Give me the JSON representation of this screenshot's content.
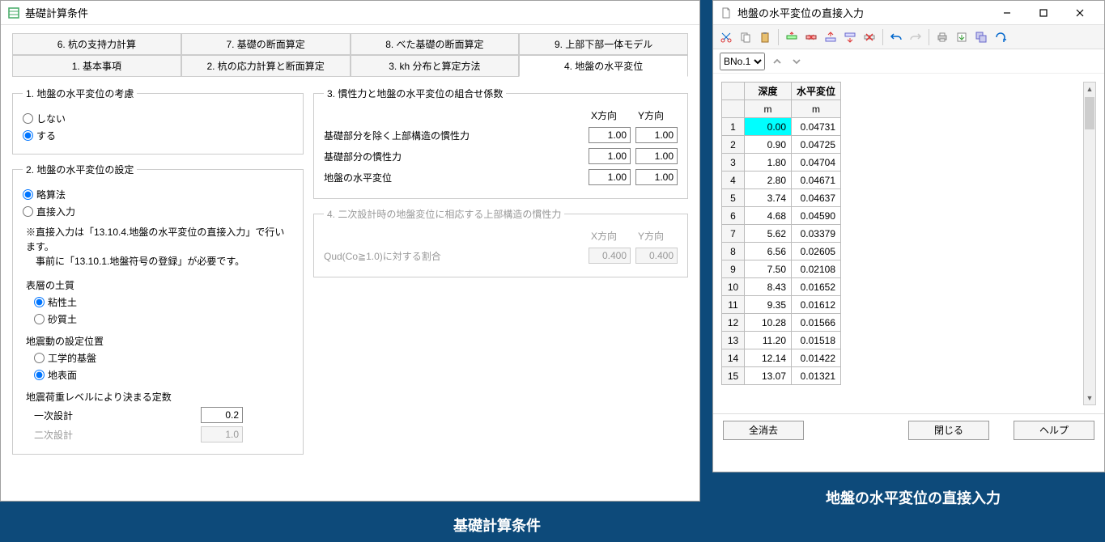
{
  "win1": {
    "title": "基礎計算条件",
    "tabs_top": [
      "6. 杭の支持力計算",
      "7. 基礎の断面算定",
      "8. べた基礎の断面算定",
      "9. 上部下部一体モデル"
    ],
    "tabs_bottom": [
      "1. 基本事項",
      "2. 杭の応力計算と断面算定",
      "3. kh 分布と算定方法",
      "4. 地盤の水平変位"
    ],
    "active_tab": "4. 地盤の水平変位",
    "group1": {
      "legend": "1. 地盤の水平変位の考慮",
      "opt_no": "しない",
      "opt_yes": "する"
    },
    "group2": {
      "legend": "2. 地盤の水平変位の設定",
      "opt_a": "略算法",
      "opt_b": "直接入力",
      "note": "※直接入力は「13.10.4.地盤の水平変位の直接入力」で行います。\n　事前に「13.10.1.地盤符号の登録」が必要です。",
      "surface_label": "表層の土質",
      "surface_opt1": "粘性土",
      "surface_opt2": "砂質土",
      "motion_label": "地震動の設定位置",
      "motion_opt1": "工学的基盤",
      "motion_opt2": "地表面",
      "const_label": "地震荷重レベルにより決まる定数",
      "const1_label": "一次設計",
      "const1_value": "0.2",
      "const2_label": "二次設計",
      "const2_value": "1.0"
    },
    "group3": {
      "legend": "3. 慣性力と地盤の水平変位の組合せ係数",
      "x_label": "X方向",
      "y_label": "Y方向",
      "row1": "基礎部分を除く上部構造の慣性力",
      "row2": "基礎部分の慣性力",
      "row3": "地盤の水平変位",
      "v1x": "1.00",
      "v1y": "1.00",
      "v2x": "1.00",
      "v2y": "1.00",
      "v3x": "1.00",
      "v3y": "1.00"
    },
    "group4": {
      "legend": "4. 二次設計時の地盤変位に相応する上部構造の慣性力",
      "x_label": "X方向",
      "y_label": "Y方向",
      "row1": "Qud(Co≧1.0)に対する割合",
      "v1x": "0.400",
      "v1y": "0.400"
    },
    "caption": "基礎計算条件"
  },
  "win2": {
    "title": "地盤の水平変位の直接入力",
    "selector": "BNo.1",
    "table": {
      "col1": "深度",
      "col2": "水平変位",
      "unit1": "m",
      "unit2": "m",
      "rows": [
        {
          "n": "1",
          "d": "0.00",
          "v": "0.04731",
          "hl": true
        },
        {
          "n": "2",
          "d": "0.90",
          "v": "0.04725"
        },
        {
          "n": "3",
          "d": "1.80",
          "v": "0.04704"
        },
        {
          "n": "4",
          "d": "2.80",
          "v": "0.04671"
        },
        {
          "n": "5",
          "d": "3.74",
          "v": "0.04637"
        },
        {
          "n": "6",
          "d": "4.68",
          "v": "0.04590"
        },
        {
          "n": "7",
          "d": "5.62",
          "v": "0.03379"
        },
        {
          "n": "8",
          "d": "6.56",
          "v": "0.02605"
        },
        {
          "n": "9",
          "d": "7.50",
          "v": "0.02108"
        },
        {
          "n": "10",
          "d": "8.43",
          "v": "0.01652"
        },
        {
          "n": "11",
          "d": "9.35",
          "v": "0.01612"
        },
        {
          "n": "12",
          "d": "10.28",
          "v": "0.01566"
        },
        {
          "n": "13",
          "d": "11.20",
          "v": "0.01518"
        },
        {
          "n": "14",
          "d": "12.14",
          "v": "0.01422"
        },
        {
          "n": "15",
          "d": "13.07",
          "v": "0.01321"
        }
      ]
    },
    "btn_clear": "全消去",
    "btn_close": "閉じる",
    "btn_help": "ヘルプ",
    "caption": "地盤の水平変位の直接入力"
  }
}
